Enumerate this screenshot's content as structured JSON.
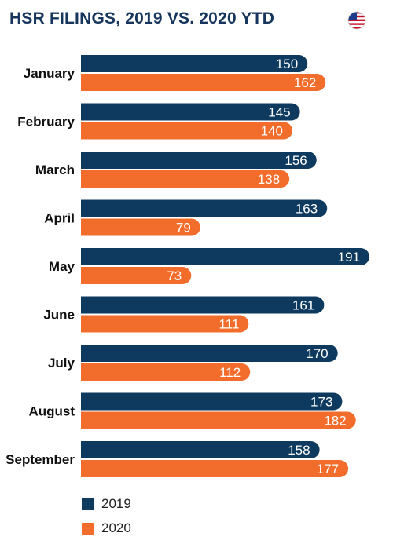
{
  "colors": {
    "title": "#17365d",
    "series_2019": "#0f3a5f",
    "series_2020": "#f26c2b",
    "label_text": "#111111"
  },
  "flag_icon": "us-flag-icon",
  "chart_data": {
    "type": "bar",
    "orientation": "horizontal",
    "title": "HSR FILINGS, 2019 VS. 2020 YTD",
    "xlim": [
      0,
      191
    ],
    "grid": false,
    "legend_position": "bottom-left",
    "categories": [
      "January",
      "February",
      "March",
      "April",
      "May",
      "June",
      "July",
      "August",
      "September"
    ],
    "series": [
      {
        "name": "2019",
        "color": "#0f3a5f",
        "values": [
          150,
          145,
          156,
          163,
          191,
          161,
          170,
          173,
          158
        ]
      },
      {
        "name": "2020",
        "color": "#f26c2b",
        "values": [
          162,
          140,
          138,
          79,
          73,
          111,
          112,
          182,
          177
        ]
      }
    ]
  }
}
